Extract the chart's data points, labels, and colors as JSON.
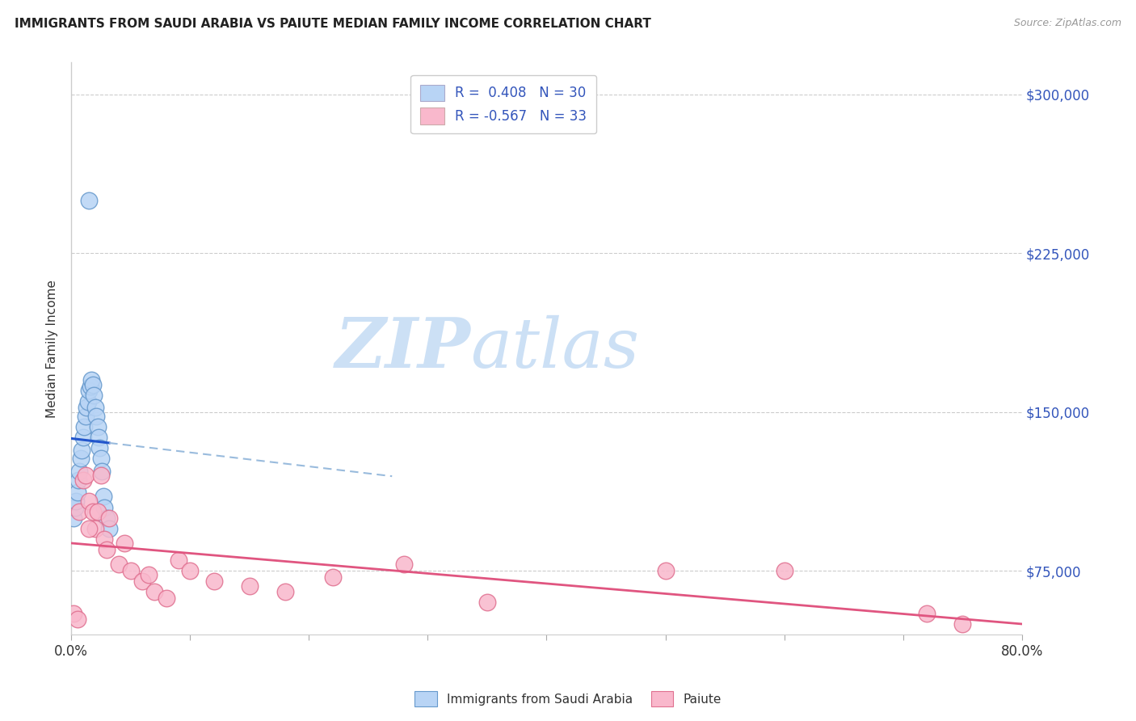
{
  "title": "IMMIGRANTS FROM SAUDI ARABIA VS PAIUTE MEDIAN FAMILY INCOME CORRELATION CHART",
  "source": "Source: ZipAtlas.com",
  "ylabel": "Median Family Income",
  "xlim": [
    0.0,
    0.8
  ],
  "ylim": [
    45000,
    315000
  ],
  "yticks": [
    75000,
    150000,
    225000,
    300000
  ],
  "ytick_labels": [
    "$75,000",
    "$150,000",
    "$225,000",
    "$300,000"
  ],
  "xtick_positions": [
    0.0,
    0.1,
    0.2,
    0.3,
    0.4,
    0.5,
    0.6,
    0.7,
    0.8
  ],
  "xtick_labels": [
    "0.0%",
    "",
    "",
    "",
    "",
    "",
    "",
    "",
    "80.0%"
  ],
  "blue_R": 0.408,
  "blue_N": 30,
  "pink_R": -0.567,
  "pink_N": 33,
  "blue_color": "#b8d4f5",
  "pink_color": "#f9b8cc",
  "blue_edge": "#6699cc",
  "pink_edge": "#e07090",
  "trend_blue_solid": "#2255cc",
  "trend_blue_dash": "#99bbdd",
  "trend_pink": "#e05580",
  "watermark_zip": "ZIP",
  "watermark_atlas": "atlas",
  "watermark_color": "#cce0f5",
  "blue_scatter_x": [
    0.002,
    0.003,
    0.004,
    0.005,
    0.006,
    0.007,
    0.008,
    0.009,
    0.01,
    0.011,
    0.012,
    0.013,
    0.014,
    0.015,
    0.016,
    0.017,
    0.018,
    0.019,
    0.02,
    0.021,
    0.022,
    0.023,
    0.024,
    0.025,
    0.026,
    0.027,
    0.028,
    0.03,
    0.032,
    0.015
  ],
  "blue_scatter_y": [
    100000,
    105000,
    108000,
    112000,
    118000,
    122000,
    128000,
    132000,
    138000,
    143000,
    148000,
    152000,
    155000,
    160000,
    162000,
    165000,
    163000,
    158000,
    152000,
    148000,
    143000,
    138000,
    133000,
    128000,
    122000,
    110000,
    105000,
    100000,
    95000,
    250000
  ],
  "pink_scatter_x": [
    0.002,
    0.005,
    0.007,
    0.01,
    0.012,
    0.015,
    0.018,
    0.02,
    0.022,
    0.025,
    0.028,
    0.03,
    0.032,
    0.04,
    0.045,
    0.05,
    0.06,
    0.065,
    0.07,
    0.08,
    0.09,
    0.1,
    0.12,
    0.15,
    0.18,
    0.22,
    0.28,
    0.35,
    0.5,
    0.6,
    0.72,
    0.75,
    0.015
  ],
  "pink_scatter_y": [
    55000,
    52000,
    103000,
    118000,
    120000,
    108000,
    103000,
    95000,
    103000,
    120000,
    90000,
    85000,
    100000,
    78000,
    88000,
    75000,
    70000,
    73000,
    65000,
    62000,
    80000,
    75000,
    70000,
    68000,
    65000,
    72000,
    78000,
    60000,
    75000,
    75000,
    55000,
    50000,
    95000
  ]
}
